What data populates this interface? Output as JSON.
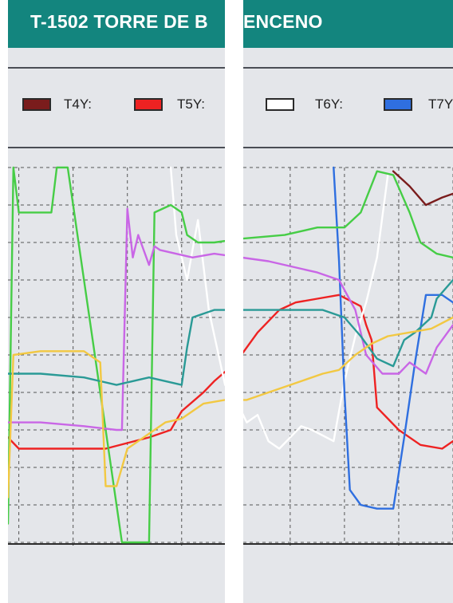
{
  "title": {
    "left_part": "T-1502 TORRE DE B",
    "right_part": "ENCENO"
  },
  "legend": [
    {
      "label": "T4Y:",
      "color": "#7a1c1c"
    },
    {
      "label": "T5Y:",
      "color": "#ee2222"
    },
    {
      "label": "T6Y:",
      "color": "#ffffff"
    },
    {
      "label": "T7Y",
      "color": "#2f6fe0"
    }
  ],
  "colors": {
    "title_bar": "#13857e",
    "plot_background": "#e4e6ea",
    "grid": "#555555"
  },
  "chart_data": {
    "type": "line",
    "title": "T-1502 TORRE DE BENCENO",
    "x_ticks": [
      "5",
      "4",
      "3",
      "2"
    ],
    "xlim": [
      5.6,
      1.5
    ],
    "ylim": [
      0,
      100
    ],
    "grid": true,
    "legend_position": "top",
    "series": [
      {
        "name": "T4Y",
        "color": "#7a1c1c",
        "points": [
          [
            2.05,
            99
          ],
          [
            1.9,
            95
          ],
          [
            1.75,
            90
          ],
          [
            1.6,
            92
          ],
          [
            1.5,
            93
          ]
        ]
      },
      {
        "name": "T5Y",
        "color": "#ee2222",
        "points": [
          [
            5.6,
            28
          ],
          [
            5.5,
            25
          ],
          [
            4.9,
            25
          ],
          [
            4.7,
            25
          ],
          [
            4.3,
            28
          ],
          [
            4.1,
            30
          ],
          [
            4.0,
            35
          ],
          [
            3.8,
            40
          ],
          [
            3.7,
            43
          ],
          [
            3.5,
            48
          ],
          [
            3.3,
            56
          ],
          [
            3.1,
            62
          ],
          [
            2.95,
            64
          ],
          [
            2.75,
            65
          ],
          [
            2.55,
            66
          ],
          [
            2.35,
            63
          ],
          [
            2.3,
            58
          ],
          [
            2.25,
            54
          ],
          [
            2.2,
            36
          ],
          [
            2.0,
            30
          ],
          [
            1.8,
            26
          ],
          [
            1.6,
            25
          ],
          [
            1.5,
            27
          ]
        ]
      },
      {
        "name": "T6Y",
        "color": "#ffffff",
        "points": [
          [
            4.1,
            100
          ],
          [
            4.05,
            82
          ],
          [
            3.95,
            70
          ],
          [
            3.85,
            86
          ],
          [
            3.75,
            62
          ],
          [
            3.6,
            42
          ],
          [
            3.5,
            38
          ],
          [
            3.4,
            32
          ],
          [
            3.3,
            34
          ],
          [
            3.2,
            27
          ],
          [
            3.1,
            25
          ],
          [
            3.0,
            28
          ],
          [
            2.9,
            31
          ],
          [
            2.8,
            30
          ],
          [
            2.6,
            27
          ],
          [
            2.5,
            43
          ],
          [
            2.4,
            55
          ],
          [
            2.3,
            64
          ],
          [
            2.2,
            76
          ],
          [
            2.1,
            98
          ]
        ]
      },
      {
        "name": "T7Y",
        "color": "#2f6fe0",
        "points": [
          [
            2.6,
            100
          ],
          [
            2.55,
            75
          ],
          [
            2.5,
            40
          ],
          [
            2.45,
            14
          ],
          [
            2.35,
            10
          ],
          [
            2.2,
            9
          ],
          [
            2.05,
            9
          ],
          [
            1.95,
            28
          ],
          [
            1.85,
            48
          ],
          [
            1.75,
            66
          ],
          [
            1.6,
            66
          ],
          [
            1.5,
            64
          ]
        ]
      },
      {
        "name": "",
        "color": "#46cd46",
        "points": [
          [
            5.6,
            5
          ],
          [
            5.55,
            100
          ],
          [
            5.5,
            88
          ],
          [
            5.2,
            88
          ],
          [
            5.15,
            100
          ],
          [
            5.05,
            100
          ],
          [
            4.85,
            60
          ],
          [
            4.65,
            20
          ],
          [
            4.55,
            0
          ],
          [
            4.3,
            0
          ],
          [
            4.25,
            88
          ],
          [
            4.1,
            90
          ],
          [
            4.0,
            88
          ],
          [
            3.95,
            82
          ],
          [
            3.85,
            80
          ],
          [
            3.7,
            80
          ],
          [
            3.45,
            81
          ],
          [
            3.05,
            82
          ],
          [
            2.75,
            84
          ],
          [
            2.5,
            84
          ],
          [
            2.35,
            88
          ],
          [
            2.2,
            99
          ],
          [
            2.05,
            98
          ],
          [
            1.9,
            88
          ],
          [
            1.8,
            80
          ],
          [
            1.65,
            77
          ],
          [
            1.5,
            76
          ]
        ]
      },
      {
        "name": "",
        "color": "#c966e6",
        "points": [
          [
            5.6,
            32
          ],
          [
            5.3,
            32
          ],
          [
            4.9,
            31
          ],
          [
            4.6,
            30
          ],
          [
            4.55,
            30
          ],
          [
            4.5,
            89
          ],
          [
            4.45,
            76
          ],
          [
            4.4,
            82
          ],
          [
            4.3,
            74
          ],
          [
            4.25,
            79
          ],
          [
            4.2,
            78
          ],
          [
            3.9,
            76
          ],
          [
            3.7,
            77
          ],
          [
            3.2,
            75
          ],
          [
            2.75,
            72
          ],
          [
            2.55,
            70
          ],
          [
            2.4,
            62
          ],
          [
            2.3,
            50
          ],
          [
            2.15,
            45
          ],
          [
            2.0,
            45
          ],
          [
            1.9,
            48
          ],
          [
            1.75,
            45
          ],
          [
            1.65,
            52
          ],
          [
            1.5,
            58
          ]
        ]
      },
      {
        "name": "",
        "color": "#2a9a96",
        "points": [
          [
            5.6,
            45
          ],
          [
            5.3,
            45
          ],
          [
            4.9,
            44
          ],
          [
            4.6,
            42
          ],
          [
            4.3,
            44
          ],
          [
            4.0,
            42
          ],
          [
            3.95,
            52
          ],
          [
            3.9,
            60
          ],
          [
            3.7,
            62
          ],
          [
            3.3,
            62
          ],
          [
            2.7,
            62
          ],
          [
            2.5,
            60
          ],
          [
            2.35,
            55
          ],
          [
            2.2,
            49
          ],
          [
            2.05,
            47
          ],
          [
            1.95,
            54
          ],
          [
            1.85,
            56
          ],
          [
            1.7,
            60
          ],
          [
            1.65,
            65
          ],
          [
            1.5,
            70
          ]
        ]
      },
      {
        "name": "",
        "color": "#f2c842",
        "points": [
          [
            5.6,
            12
          ],
          [
            5.55,
            50
          ],
          [
            5.3,
            51
          ],
          [
            4.9,
            51
          ],
          [
            4.75,
            48
          ],
          [
            4.7,
            15
          ],
          [
            4.6,
            15
          ],
          [
            4.5,
            25
          ],
          [
            4.35,
            28
          ],
          [
            4.15,
            32
          ],
          [
            4.0,
            33
          ],
          [
            3.8,
            37
          ],
          [
            3.6,
            38
          ],
          [
            3.4,
            38
          ],
          [
            3.2,
            40
          ],
          [
            3.0,
            42
          ],
          [
            2.7,
            45
          ],
          [
            2.55,
            46
          ],
          [
            2.4,
            50
          ],
          [
            2.25,
            53
          ],
          [
            2.1,
            55
          ],
          [
            1.9,
            56
          ],
          [
            1.7,
            57
          ],
          [
            1.5,
            60
          ]
        ]
      }
    ]
  }
}
